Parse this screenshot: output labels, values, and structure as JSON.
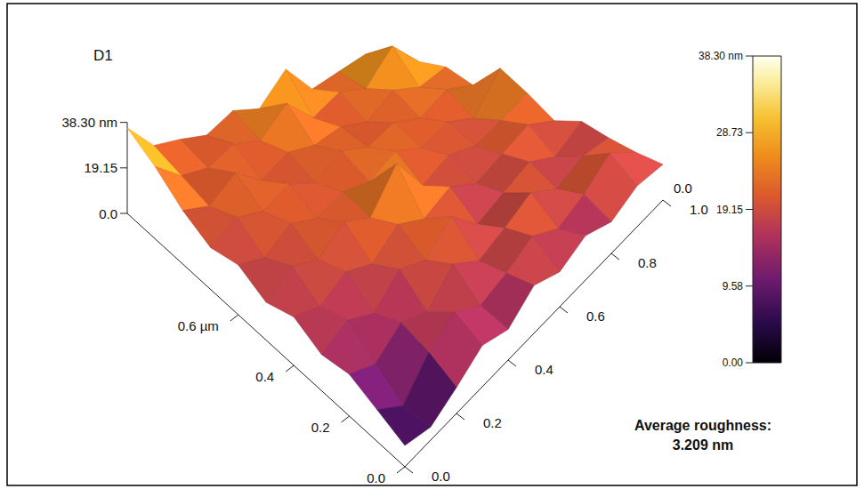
{
  "chart_data": {
    "type": "surface3d",
    "title": "D1",
    "x": [
      0,
      0.1,
      0.2,
      0.3,
      0.4,
      0.5,
      0.6,
      0.7,
      0.8,
      0.9,
      1.0
    ],
    "y": [
      0,
      0.1,
      0.2,
      0.3,
      0.4,
      0.5,
      0.6,
      0.7,
      0.8,
      0.9,
      1.0
    ],
    "z": [
      [
        8,
        5,
        10,
        16,
        12,
        19,
        14,
        18,
        13,
        17,
        15
      ],
      [
        12,
        4,
        15,
        21,
        14,
        17,
        22,
        15,
        19,
        26,
        16
      ],
      [
        16,
        11,
        18,
        13,
        23,
        15,
        19,
        24,
        16,
        20,
        18
      ],
      [
        14,
        19,
        13,
        22,
        17,
        26,
        14,
        18,
        22,
        15,
        21
      ],
      [
        19,
        15,
        21,
        16,
        24,
        18,
        23,
        16,
        20,
        24,
        17
      ],
      [
        15,
        22,
        17,
        25,
        19,
        34,
        17,
        22,
        18,
        21,
        25
      ],
      [
        20,
        16,
        23,
        18,
        22,
        19,
        25,
        19,
        23,
        17,
        32
      ],
      [
        17,
        23,
        19,
        24,
        18,
        25,
        20,
        24,
        19,
        25,
        20
      ],
      [
        22,
        18,
        26,
        17,
        23,
        20,
        22,
        18,
        26,
        21,
        24
      ],
      [
        30,
        21,
        19,
        24,
        20,
        31,
        19,
        25,
        21,
        35,
        22
      ],
      [
        36,
        24,
        22,
        19,
        25,
        21,
        34,
        20,
        23,
        26,
        19
      ]
    ],
    "xlim": [
      0,
      1.0
    ],
    "xticks": [
      {
        "value": 0,
        "label": "0.0"
      },
      0.2,
      0.4,
      {
        "value": 0.6,
        "label": "0.6 µm"
      }
    ],
    "ylim": [
      0,
      1.0
    ],
    "yticks": [
      {
        "value": 0,
        "label": "0.0"
      },
      0.2,
      0.4,
      0.6,
      0.8,
      {
        "value": 1.0,
        "label": "1.0"
      }
    ],
    "zlim": [
      0,
      38.3
    ],
    "zticks": [
      {
        "value": 0,
        "label": "0.0"
      },
      19.15,
      {
        "value": 38.3,
        "label": "38.30 nm"
      }
    ],
    "z2ticks": [
      {
        "value": 0,
        "label": "0.0"
      }
    ],
    "colorbar": {
      "range": [
        0,
        38.3
      ],
      "ticks": [
        {
          "value": 0,
          "label": "0.00"
        },
        9.58,
        19.15,
        28.73,
        {
          "value": 38.3,
          "label": "38.30 nm"
        }
      ]
    },
    "annotation": [
      "Average roughness:",
      "3.209 nm"
    ]
  }
}
